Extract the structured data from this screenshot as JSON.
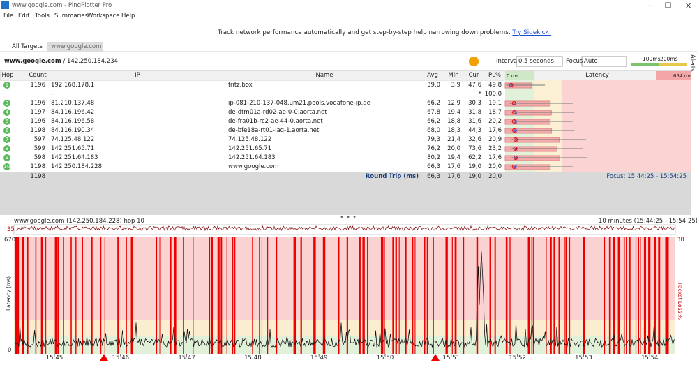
{
  "window": {
    "title": "www.google.com - PingPlotter Pro"
  },
  "menu": [
    "File",
    "Edit",
    "Tools",
    "Summaries",
    "Workspace",
    "Help"
  ],
  "banner": {
    "text": "Track network performance automatically and get step-by-step help narrowing down problems.",
    "link": "Try Sidekick!"
  },
  "tabs": [
    "All Targets",
    "www.google.com"
  ],
  "target": {
    "host": "www.google.com",
    "ip": "/ 142.250.184.234"
  },
  "controls": {
    "interval_label": "Interval",
    "interval": "0,5 seconds",
    "focus_label": "Focus",
    "focus": "Auto",
    "scale": [
      "100ms",
      "200ms"
    ]
  },
  "side": {
    "alerts": "Alerts"
  },
  "table": {
    "headers": [
      "Hop",
      "Count",
      "IP",
      "Name",
      "Avg",
      "Min",
      "Cur",
      "PL%",
      "Latency"
    ],
    "latency_min": "0 ms",
    "latency_max": "654 ms",
    "rows": [
      [
        "1",
        1196,
        "192.168.178.1",
        "fritz.box",
        "39,0",
        "3,9",
        "47,6",
        "49,8"
      ],
      [
        null,
        null,
        "-",
        null,
        null,
        null,
        "*",
        "100,0"
      ],
      [
        "3",
        1196,
        "81.210.137.48",
        "ip-081-210-137-048.um21.pools.vodafone-ip.de",
        "66,2",
        "12,9",
        "30,3",
        "19,1"
      ],
      [
        "4",
        1197,
        "84.116.196.42",
        "de-dtm01a-rd02-ae-0-0.aorta.net",
        "67,8",
        "19,4",
        "31,8",
        "18,7"
      ],
      [
        "5",
        1196,
        "84.116.196.58",
        "de-fra01b-rc2-ae-44-0.aorta.net",
        "66,2",
        "18,8",
        "31,6",
        "20,2"
      ],
      [
        "6",
        1198,
        "84.116.190.34",
        "de-bfe18a-rt01-lag-1.aorta.net",
        "68,0",
        "18,3",
        "44,3",
        "17,6"
      ],
      [
        "7",
        597,
        "74.125.48.122",
        "74.125.48.122",
        "79,3",
        "21,4",
        "32,6",
        "20,9"
      ],
      [
        "8",
        599,
        "142.251.65.71",
        "142.251.65.71",
        "76,2",
        "20,0",
        "73,6",
        "23,2"
      ],
      [
        "9",
        598,
        "142.251.64.183",
        "142.251.64.183",
        "80,2",
        "19,4",
        "62,2",
        "17,6"
      ],
      [
        "10",
        1198,
        "142.250.184.228",
        "www.google.com",
        "66,3",
        "17,6",
        "19,0",
        "20,0"
      ]
    ],
    "summary": {
      "count": 1198,
      "label": "Round Trip (ms)",
      "avg": "66,3",
      "min": "17,6",
      "cur": "19,0",
      "pl": "20,0",
      "focus": "Focus: 15:44:25 - 15:54:25"
    }
  },
  "graph": {
    "title": "www.google.com (142.250.184.228) hop 10",
    "range": "10 minutes (15:44:25 - 15:54:25)",
    "mini_y": "35",
    "y_top": "670",
    "y_bottom": "0",
    "loss_top": "30",
    "y_label": "Latency (ms)",
    "loss_label": "Packet Loss %",
    "x_labels": [
      "15:45",
      "15:46",
      "15:47",
      "15:48",
      "15:49",
      "15:50",
      "15:51",
      "15:52",
      "15:53",
      "15:54"
    ]
  }
}
